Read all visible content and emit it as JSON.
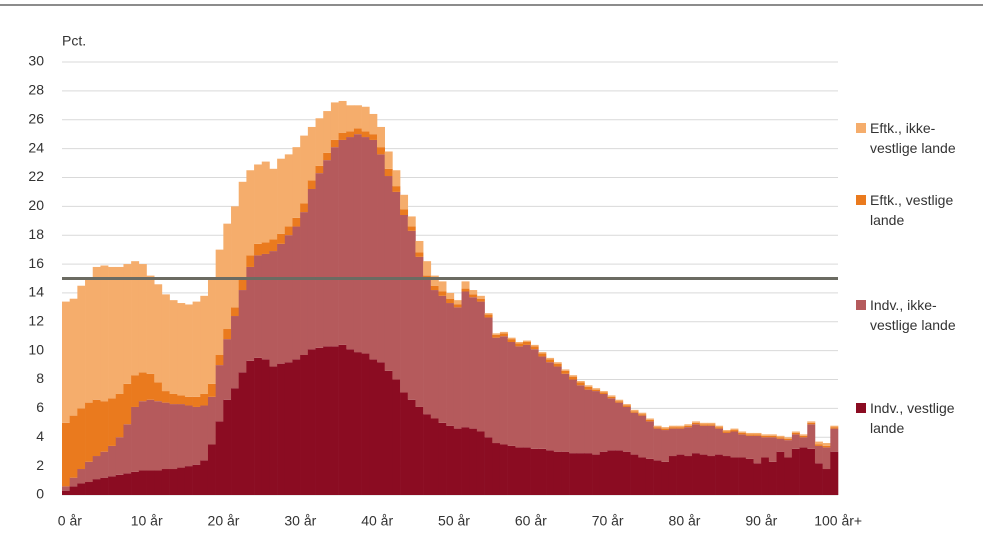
{
  "chart_data": {
    "type": "stacked_bar",
    "y_label": "Pct.",
    "categories": [
      "0 år",
      null,
      null,
      null,
      null,
      null,
      null,
      null,
      null,
      null,
      "10 år",
      null,
      null,
      null,
      null,
      null,
      null,
      null,
      null,
      null,
      "20 år",
      null,
      null,
      null,
      null,
      null,
      null,
      null,
      null,
      null,
      "30 år",
      null,
      null,
      null,
      null,
      null,
      null,
      null,
      null,
      null,
      "40 år",
      null,
      null,
      null,
      null,
      null,
      null,
      null,
      null,
      null,
      "50 år",
      null,
      null,
      null,
      null,
      null,
      null,
      null,
      null,
      null,
      "60 år",
      null,
      null,
      null,
      null,
      null,
      null,
      null,
      null,
      null,
      "70 år",
      null,
      null,
      null,
      null,
      null,
      null,
      null,
      null,
      null,
      "80 år",
      null,
      null,
      null,
      null,
      null,
      null,
      null,
      null,
      null,
      "90 år",
      null,
      null,
      null,
      null,
      null,
      null,
      null,
      null,
      null,
      "100 år+"
    ],
    "series": [
      {
        "name": "Indv., vestlige lande",
        "color": "#8b0c22",
        "values": [
          0.3,
          0.6,
          0.8,
          0.9,
          1.1,
          1.2,
          1.3,
          1.4,
          1.5,
          1.6,
          1.7,
          1.7,
          1.7,
          1.8,
          1.8,
          1.9,
          2.0,
          2.1,
          2.4,
          3.5,
          5.1,
          6.6,
          7.4,
          8.5,
          9.3,
          9.5,
          9.4,
          8.9,
          9.1,
          9.2,
          9.4,
          9.7,
          10.1,
          10.2,
          10.3,
          10.3,
          10.4,
          10.1,
          9.9,
          9.8,
          9.4,
          9.2,
          8.6,
          8.0,
          7.1,
          6.6,
          6.1,
          5.6,
          5.3,
          5.0,
          4.8,
          4.6,
          4.7,
          4.6,
          4.4,
          4.0,
          3.6,
          3.5,
          3.4,
          3.3,
          3.3,
          3.2,
          3.2,
          3.1,
          3.0,
          3.0,
          2.9,
          2.9,
          2.9,
          2.8,
          3.0,
          3.1,
          3.1,
          3.0,
          2.8,
          2.6,
          2.5,
          2.4,
          2.3,
          2.7,
          2.8,
          2.7,
          2.9,
          2.8,
          2.7,
          2.8,
          2.7,
          2.6,
          2.6,
          2.5,
          2.2,
          2.6,
          2.3,
          3.0,
          2.6,
          3.2,
          3.3,
          3.2,
          2.2,
          1.8,
          3.0
        ]
      },
      {
        "name": "Indv., ikke-vestlige lande",
        "color": "#b55a5c",
        "values": [
          0.3,
          0.6,
          1.0,
          1.4,
          1.6,
          1.8,
          2.1,
          2.6,
          3.4,
          4.5,
          4.8,
          4.9,
          4.8,
          4.6,
          4.5,
          4.4,
          4.2,
          4.0,
          3.8,
          3.3,
          3.9,
          4.2,
          5.0,
          5.7,
          6.5,
          7.1,
          7.3,
          8.0,
          8.3,
          8.8,
          9.2,
          9.9,
          11.1,
          12.1,
          12.9,
          13.8,
          14.2,
          14.7,
          15.1,
          15.0,
          15.2,
          14.4,
          13.5,
          13.0,
          12.3,
          11.7,
          10.4,
          9.3,
          8.9,
          8.8,
          8.5,
          8.4,
          9.4,
          9.1,
          9.0,
          8.3,
          7.3,
          7.5,
          7.2,
          7.0,
          7.1,
          6.9,
          6.4,
          6.1,
          5.9,
          5.4,
          5.1,
          4.7,
          4.4,
          4.4,
          4.0,
          3.6,
          3.3,
          3.1,
          2.9,
          2.9,
          2.6,
          2.2,
          2.2,
          1.9,
          1.8,
          2.0,
          2.0,
          2.0,
          2.1,
          1.8,
          1.6,
          1.8,
          1.6,
          1.6,
          1.9,
          1.4,
          1.7,
          0.9,
          1.2,
          1.0,
          0.7,
          1.7,
          1.2,
          1.5,
          1.6
        ]
      },
      {
        "name": "Eftk., vestlige lande",
        "color": "#ea7a1e",
        "values": [
          4.4,
          4.3,
          4.2,
          4.1,
          3.9,
          3.5,
          3.3,
          3.0,
          2.8,
          2.2,
          2.0,
          1.8,
          1.3,
          0.8,
          0.7,
          0.6,
          0.6,
          0.7,
          0.8,
          0.9,
          0.7,
          0.7,
          0.6,
          0.8,
          0.8,
          0.8,
          0.8,
          0.8,
          0.7,
          0.6,
          0.6,
          0.6,
          0.6,
          0.5,
          0.5,
          0.5,
          0.5,
          0.4,
          0.4,
          0.4,
          0.4,
          0.5,
          0.5,
          0.4,
          0.4,
          0.3,
          0.3,
          0.3,
          0.3,
          0.3,
          0.3,
          0.2,
          0.2,
          0.2,
          0.2,
          0.2,
          0.2,
          0.2,
          0.2,
          0.2,
          0.2,
          0.2,
          0.2,
          0.2,
          0.2,
          0.2,
          0.2,
          0.2,
          0.2,
          0.1,
          0.1,
          0.1,
          0.1,
          0.1,
          0.1,
          0.1,
          0.1,
          0.1,
          0.1,
          0.1,
          0.1,
          0.1,
          0.1,
          0.1,
          0.1,
          0.1,
          0.1,
          0.1,
          0.1,
          0.1,
          0.1,
          0.1,
          0.1,
          0.1,
          0.1,
          0.1,
          0.1,
          0.1,
          0.1,
          0.1,
          0.1
        ]
      },
      {
        "name": "Eftk., ikke-vestlige lande",
        "color": "#f5ad6c",
        "values": [
          8.4,
          8.1,
          8.5,
          8.6,
          9.2,
          9.4,
          9.1,
          8.8,
          8.3,
          7.9,
          7.5,
          6.8,
          6.8,
          6.7,
          6.5,
          6.4,
          6.4,
          6.6,
          6.8,
          7.4,
          7.3,
          7.3,
          7.0,
          6.7,
          5.9,
          5.5,
          5.6,
          4.9,
          5.2,
          5.0,
          4.9,
          4.7,
          3.7,
          3.3,
          2.9,
          2.6,
          2.2,
          1.8,
          1.6,
          1.7,
          1.4,
          1.4,
          1.2,
          1.1,
          1.0,
          0.7,
          0.8,
          1.0,
          0.7,
          0.7,
          0.4,
          0.3,
          0.5,
          0.3,
          0.2,
          0.1,
          0.1,
          0.1,
          0.1,
          0.1,
          0.1,
          0.1,
          0.1,
          0.1,
          0.1,
          0.1,
          0.1,
          0.1,
          0.1,
          0.1,
          0.1,
          0.1,
          0.1,
          0.1,
          0.1,
          0.1,
          0.1,
          0.1,
          0.1,
          0.1,
          0.1,
          0.1,
          0.1,
          0.1,
          0.1,
          0.1,
          0.1,
          0.1,
          0.1,
          0.1,
          0.1,
          0.1,
          0.1,
          0.1,
          0.1,
          0.1,
          0.1,
          0.1,
          0.2,
          0.2,
          0.1
        ]
      }
    ],
    "reference_line": 15,
    "reference_color": "#6b6b62",
    "ylim": [
      0,
      30
    ],
    "yticks": [
      0,
      2,
      4,
      6,
      8,
      10,
      12,
      14,
      16,
      18,
      20,
      22,
      24,
      26,
      28,
      30
    ],
    "grid": true,
    "legend": "right"
  }
}
